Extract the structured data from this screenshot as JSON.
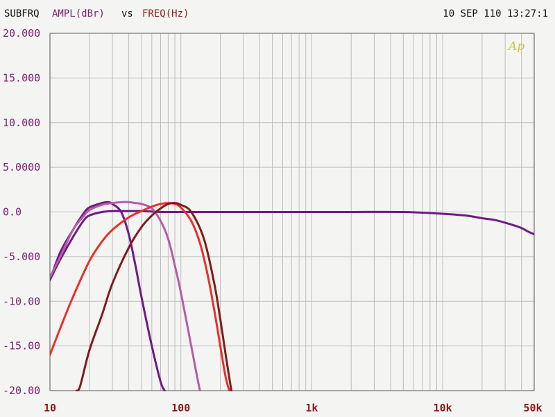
{
  "header": {
    "left_title": "SUBFRQ",
    "y_quantity": "AMPL(dBr)",
    "vs": "vs",
    "x_quantity": "FREQ(Hz)",
    "timestamp": "10 SEP 110 13:27:1",
    "logo": "Ap"
  },
  "colors": {
    "background": "#f4f4f2",
    "grid": "#bdbdbd",
    "frame": "#555555",
    "y_label": "#7a1f6e",
    "x_label": "#8b1a1a",
    "title_black": "#111111",
    "logo": "#cbc64a"
  },
  "chart_data": {
    "type": "line",
    "title": "",
    "xlabel": "FREQ(Hz)",
    "ylabel": "AMPL(dBr)",
    "x_scale": "log",
    "xlim": [
      10,
      50000
    ],
    "ylim": [
      -20,
      20
    ],
    "grid": true,
    "x_ticks": [
      {
        "value": 10,
        "label": "10"
      },
      {
        "value": 100,
        "label": "100"
      },
      {
        "value": 1000,
        "label": "1k"
      },
      {
        "value": 10000,
        "label": "10k"
      },
      {
        "value": 50000,
        "label": "50k"
      }
    ],
    "y_ticks": [
      {
        "value": 20,
        "label": "20.000"
      },
      {
        "value": 15,
        "label": "15.000"
      },
      {
        "value": 10,
        "label": "10.000"
      },
      {
        "value": 5,
        "label": "5.0000"
      },
      {
        "value": 0,
        "label": "0.0"
      },
      {
        "value": -5,
        "label": "-5.000"
      },
      {
        "value": -10,
        "label": "-10.00"
      },
      {
        "value": -15,
        "label": "-15.00"
      },
      {
        "value": -20,
        "label": "-20.00"
      }
    ],
    "series": [
      {
        "color": "#6f1b85",
        "x": [
          10,
          12,
          15,
          18,
          20,
          25,
          30,
          35,
          40,
          45,
          50,
          60,
          70,
          80,
          90,
          100,
          150,
          200,
          300,
          500,
          1000,
          2000,
          5000,
          10000,
          15000,
          20000,
          25000,
          30000,
          35000,
          40000,
          45000,
          50000
        ],
        "y": [
          -7.6,
          -5.3,
          -2.8,
          -1.0,
          -0.4,
          0.0,
          0.1,
          0.1,
          0.1,
          0.1,
          0.1,
          0.05,
          0.0,
          0.0,
          0.0,
          0.0,
          0.0,
          0.0,
          0.0,
          0.0,
          0.0,
          0.0,
          0.0,
          -0.2,
          -0.4,
          -0.7,
          -0.9,
          -1.2,
          -1.5,
          -1.8,
          -2.2,
          -2.5
        ]
      },
      {
        "color": "#6f1b85",
        "x": [
          10,
          12,
          15,
          18,
          20,
          25,
          28,
          30,
          35,
          40,
          45,
          50,
          60,
          70,
          75,
          80
        ],
        "y": [
          -7.6,
          -4.5,
          -2.0,
          -0.2,
          0.5,
          1.0,
          1.1,
          0.9,
          0.0,
          -2.5,
          -6.0,
          -9.5,
          -15.0,
          -19.0,
          -20.0,
          -21.0
        ]
      },
      {
        "color": "#b55da6",
        "x": [
          10,
          12,
          15,
          18,
          20,
          25,
          30,
          35,
          40,
          45,
          50,
          60,
          70,
          80,
          90,
          100,
          120,
          140,
          150
        ],
        "y": [
          -7.3,
          -5.0,
          -2.0,
          -0.5,
          0.2,
          0.8,
          1.0,
          1.1,
          1.1,
          1.0,
          0.9,
          0.4,
          -1.0,
          -3.0,
          -6.0,
          -9.0,
          -15.0,
          -20.0,
          -21.0
        ]
      },
      {
        "color": "#e5312a",
        "x": [
          10,
          12,
          15,
          20,
          25,
          30,
          40,
          50,
          60,
          70,
          80,
          90,
          100,
          120,
          140,
          160,
          180,
          200,
          220,
          240
        ],
        "y": [
          -16.0,
          -13.0,
          -9.5,
          -5.5,
          -3.3,
          -2.0,
          -0.6,
          0.1,
          0.6,
          0.9,
          1.0,
          0.9,
          0.5,
          -1.0,
          -3.5,
          -7.0,
          -11.0,
          -15.0,
          -18.5,
          -20.5
        ]
      },
      {
        "color": "#7e1c1c",
        "x": [
          16,
          17,
          20,
          25,
          30,
          40,
          50,
          60,
          70,
          80,
          90,
          100,
          120,
          150,
          180,
          200,
          220,
          240,
          250
        ],
        "y": [
          -20.0,
          -19.5,
          -15.5,
          -11.5,
          -8.0,
          -4.0,
          -1.7,
          -0.4,
          0.4,
          0.9,
          1.0,
          0.8,
          0.0,
          -3.0,
          -8.0,
          -12.0,
          -16.0,
          -19.5,
          -21.0
        ]
      }
    ]
  }
}
